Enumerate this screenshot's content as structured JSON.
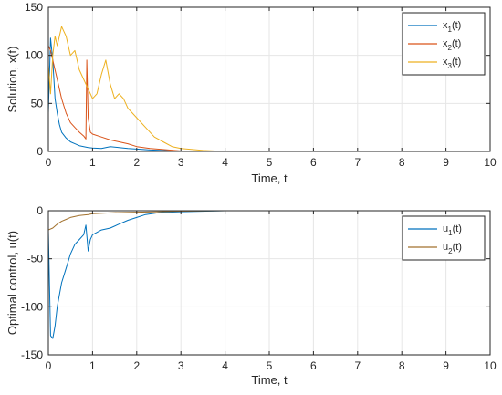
{
  "chart_data": [
    {
      "type": "line",
      "xlabel": "Time, t",
      "ylabel": "Solution, x(t)",
      "xlim": [
        0,
        10
      ],
      "ylim": [
        0,
        150
      ],
      "xticks": [
        0,
        1,
        2,
        3,
        4,
        5,
        6,
        7,
        8,
        9,
        10
      ],
      "yticks": [
        0,
        50,
        100,
        150
      ],
      "grid": true,
      "legend_position": "top-right",
      "series": [
        {
          "name": "x1(t)",
          "legend_main": "x",
          "legend_sub": "1",
          "legend_tail": "(t)",
          "color": "#0072BD",
          "x": [
            0,
            0.05,
            0.1,
            0.15,
            0.2,
            0.25,
            0.3,
            0.4,
            0.5,
            0.6,
            0.7,
            0.8,
            0.9,
            1.0,
            1.2,
            1.4,
            1.6,
            1.8,
            2.0,
            2.3,
            2.6,
            3.0,
            4.0,
            5.0,
            10.0
          ],
          "y": [
            40,
            118,
            95,
            55,
            40,
            28,
            20,
            14,
            10,
            8,
            6,
            5,
            4,
            3.5,
            3,
            5,
            4,
            3,
            2.5,
            1.5,
            1,
            0.5,
            0,
            0,
            0
          ]
        },
        {
          "name": "x2(t)",
          "legend_main": "x",
          "legend_sub": "2",
          "legend_tail": "(t)",
          "color": "#D95319",
          "x": [
            0,
            0.05,
            0.1,
            0.2,
            0.3,
            0.4,
            0.5,
            0.6,
            0.7,
            0.8,
            0.85,
            0.87,
            0.9,
            0.95,
            1.0,
            1.2,
            1.4,
            1.6,
            1.8,
            2.0,
            2.3,
            2.6,
            3.0,
            4.0,
            5.0,
            10.0
          ],
          "y": [
            110,
            105,
            95,
            75,
            55,
            40,
            30,
            25,
            20,
            16,
            13,
            95,
            35,
            20,
            18,
            15,
            12,
            10,
            8,
            5,
            3,
            2,
            0.5,
            0,
            0,
            0
          ]
        },
        {
          "name": "x3(t)",
          "legend_main": "x",
          "legend_sub": "3",
          "legend_tail": "(t)",
          "color": "#EDB120",
          "x": [
            0,
            0.05,
            0.1,
            0.15,
            0.2,
            0.3,
            0.35,
            0.4,
            0.5,
            0.6,
            0.7,
            0.8,
            0.9,
            1.0,
            1.1,
            1.2,
            1.3,
            1.4,
            1.5,
            1.6,
            1.7,
            1.8,
            1.9,
            2.0,
            2.2,
            2.4,
            2.6,
            2.8,
            3.0,
            3.5,
            4.0,
            5.0,
            10.0
          ],
          "y": [
            90,
            60,
            100,
            120,
            110,
            130,
            125,
            120,
            100,
            105,
            85,
            75,
            65,
            55,
            60,
            80,
            95,
            70,
            55,
            60,
            55,
            45,
            40,
            35,
            25,
            15,
            10,
            5,
            3,
            1,
            0,
            0,
            0
          ]
        }
      ]
    },
    {
      "type": "line",
      "xlabel": "Time, t",
      "ylabel": "Optimal control, u(t)",
      "xlim": [
        0,
        10
      ],
      "ylim": [
        -150,
        0
      ],
      "xticks": [
        0,
        1,
        2,
        3,
        4,
        5,
        6,
        7,
        8,
        9,
        10
      ],
      "yticks": [
        -150,
        -100,
        -50,
        0
      ],
      "grid": true,
      "legend_position": "top-right",
      "series": [
        {
          "name": "u1(t)",
          "legend_main": "u",
          "legend_sub": "1",
          "legend_tail": "(t)",
          "color": "#0072BD",
          "x": [
            0,
            0.05,
            0.1,
            0.15,
            0.2,
            0.3,
            0.4,
            0.5,
            0.6,
            0.7,
            0.8,
            0.85,
            0.9,
            0.95,
            1.0,
            1.2,
            1.4,
            1.6,
            1.8,
            2.0,
            2.2,
            2.5,
            3.0,
            4.0,
            5.0,
            10.0
          ],
          "y": [
            -20,
            -130,
            -133,
            -120,
            -100,
            -75,
            -60,
            -45,
            -35,
            -30,
            -25,
            -15,
            -42,
            -30,
            -25,
            -20,
            -18,
            -14,
            -10,
            -7,
            -4,
            -2,
            -1,
            0,
            0,
            0
          ]
        },
        {
          "name": "u2(t)",
          "legend_main": "u",
          "legend_sub": "2",
          "legend_tail": "(t)",
          "color": "#A2712D",
          "x": [
            0,
            0.1,
            0.2,
            0.3,
            0.4,
            0.5,
            0.7,
            0.9,
            1.0,
            1.5,
            2.0,
            2.5,
            3.0,
            4.0,
            5.0,
            10.0
          ],
          "y": [
            -20,
            -18,
            -14,
            -11,
            -9,
            -7,
            -5,
            -4,
            -3,
            -2,
            -1.5,
            -1,
            -0.5,
            0,
            0,
            0
          ]
        }
      ]
    }
  ]
}
